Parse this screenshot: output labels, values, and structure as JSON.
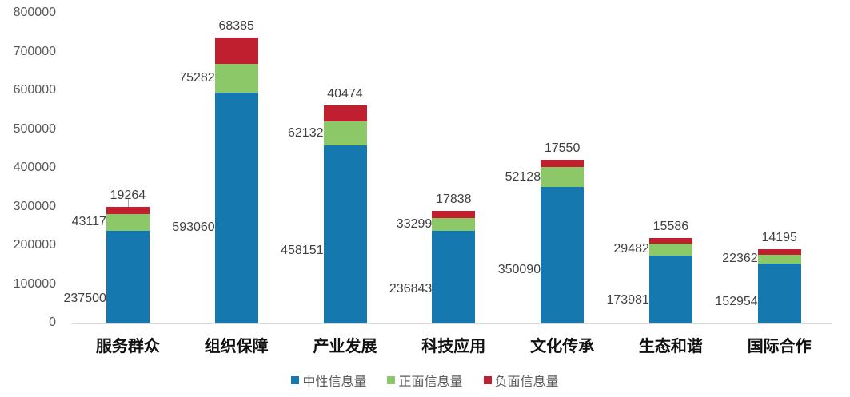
{
  "chart_data": {
    "type": "bar",
    "stacked": true,
    "title": "",
    "xlabel": "",
    "ylabel": "",
    "ylim": [
      0,
      800000
    ],
    "yticks": [
      0,
      100000,
      200000,
      300000,
      400000,
      500000,
      600000,
      700000,
      800000
    ],
    "ytick_labels": [
      "0",
      "100000",
      "200000",
      "300000",
      "400000",
      "500000",
      "600000",
      "700000",
      "800000"
    ],
    "grid": false,
    "legend_position": "bottom",
    "categories": [
      "服务群众",
      "组织保障",
      "产业发展",
      "科技应用",
      "文化传承",
      "生态和谐",
      "国际合作"
    ],
    "series": [
      {
        "name": "中性信息量",
        "color": "#1578ae",
        "values": [
          237500,
          593060,
          458151,
          236843,
          350090,
          173981,
          152954
        ]
      },
      {
        "name": "正面信息量",
        "color": "#8cc867",
        "values": [
          43117,
          75282,
          62132,
          33299,
          52128,
          29482,
          22362
        ]
      },
      {
        "name": "负面信息量",
        "color": "#c01f2f",
        "values": [
          19264,
          68385,
          40474,
          17838,
          17550,
          15586,
          14195
        ]
      }
    ]
  },
  "legend": {
    "items": [
      {
        "label": "中性信息量",
        "color": "#1578ae"
      },
      {
        "label": "正面信息量",
        "color": "#8cc867"
      },
      {
        "label": "负面信息量",
        "color": "#c01f2f"
      }
    ]
  }
}
